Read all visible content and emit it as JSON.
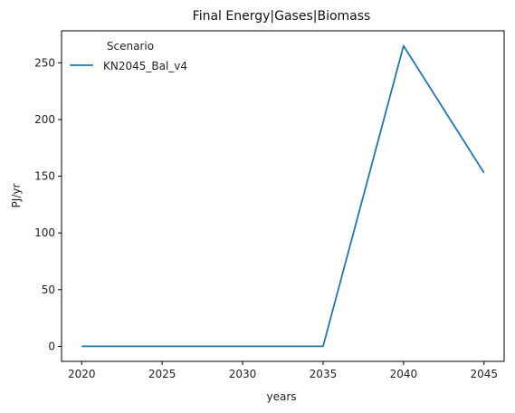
{
  "chart_data": {
    "type": "line",
    "title": "Final Energy|Gases|Biomass",
    "xlabel": "years",
    "ylabel": "PJ/yr",
    "x": [
      2020,
      2025,
      2030,
      2035,
      2040,
      2045
    ],
    "series": [
      {
        "name": "KN2045_Bal_v4",
        "values": [
          0,
          0,
          0,
          0,
          265,
          153
        ],
        "color": "#1f77b4"
      }
    ],
    "xticks": [
      2020,
      2025,
      2030,
      2035,
      2040,
      2045
    ],
    "yticks": [
      0,
      50,
      100,
      150,
      200,
      250
    ],
    "xlim": [
      2018.75,
      2046.25
    ],
    "ylim": [
      -13.25,
      278.25
    ],
    "grid": false,
    "legend": {
      "title": "Scenario",
      "placement": "top-left"
    }
  }
}
